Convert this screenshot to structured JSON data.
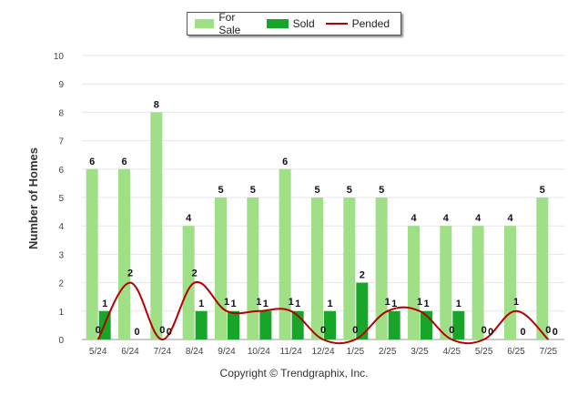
{
  "legend": {
    "for_sale": "For Sale",
    "sold": "Sold",
    "pended": "Pended"
  },
  "copyright": "Copyright © Trendgraphix, Inc.",
  "colors": {
    "for_sale": "#9fdf86",
    "sold": "#17a52a",
    "pended": "#b30000"
  },
  "chart_data": {
    "type": "bar",
    "ylabel": "Number of Homes",
    "xlabel": "",
    "ylim": [
      0,
      10
    ],
    "yticks": [
      0,
      1,
      2,
      3,
      4,
      5,
      6,
      7,
      8,
      9,
      10
    ],
    "grid": true,
    "legend_position": "top-center",
    "categories": [
      "5/24",
      "6/24",
      "7/24",
      "8/24",
      "9/24",
      "10/24",
      "11/24",
      "12/24",
      "1/25",
      "2/25",
      "3/25",
      "4/25",
      "5/25",
      "6/25",
      "7/25"
    ],
    "series": [
      {
        "name": "For Sale",
        "type": "bar",
        "values": [
          6,
          6,
          8,
          4,
          5,
          5,
          6,
          5,
          5,
          5,
          4,
          4,
          4,
          4,
          5
        ]
      },
      {
        "name": "Sold",
        "type": "bar",
        "values": [
          1,
          0,
          0,
          1,
          1,
          1,
          1,
          1,
          2,
          1,
          1,
          1,
          0,
          0,
          0
        ]
      },
      {
        "name": "Pended",
        "type": "line",
        "values": [
          0,
          2,
          0,
          2,
          1,
          1,
          1,
          0,
          0,
          1,
          1,
          0,
          0,
          1,
          0
        ]
      }
    ]
  }
}
